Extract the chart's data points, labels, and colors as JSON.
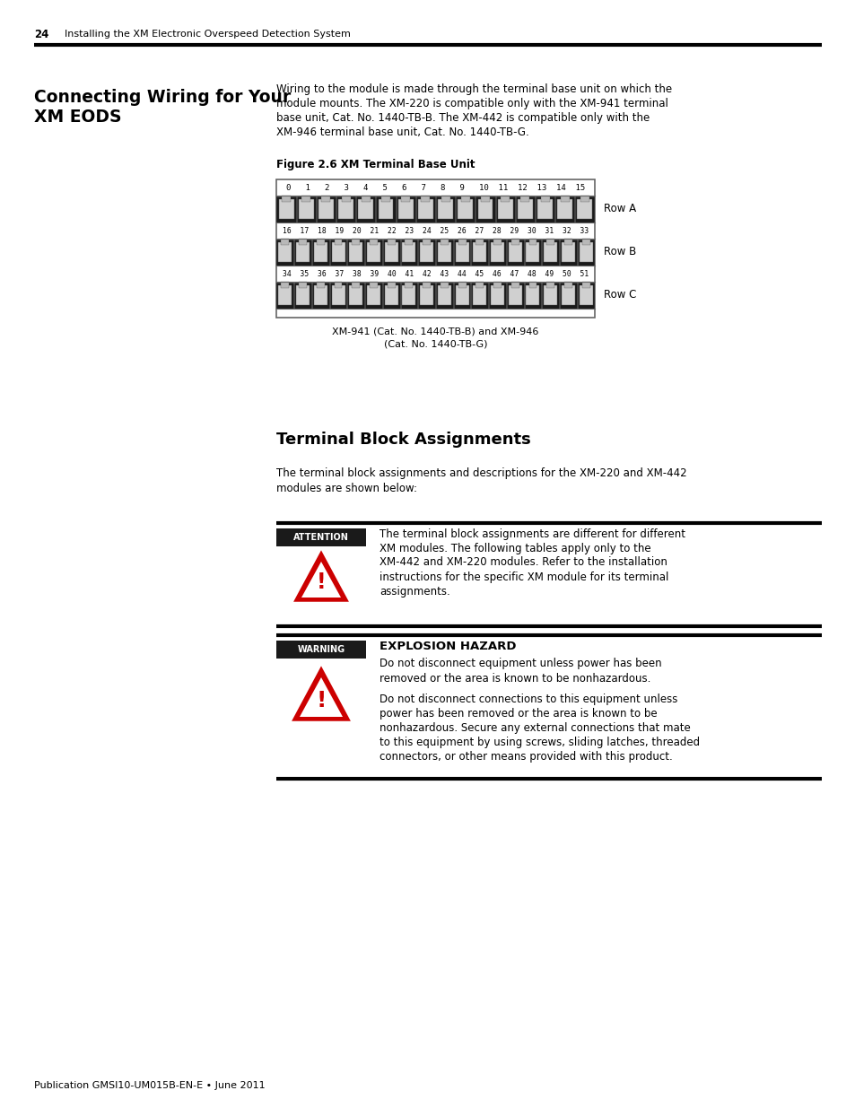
{
  "page_number": "24",
  "header_text": "Installing the XM Electronic Overspeed Detection System",
  "section_title_line1": "Connecting Wiring for Your",
  "section_title_line2": "XM EODS",
  "section_body_lines": [
    "Wiring to the module is made through the terminal base unit on which the",
    "module mounts. The XM-220 is compatible only with the XM-941 terminal",
    "base unit, Cat. No. 1440-TB-B. The XM-442 is compatible only with the",
    "XM-946 terminal base unit, Cat. No. 1440-TB-G."
  ],
  "figure_label": "Figure 2.6 XM Terminal Base Unit",
  "row_a_numbers": "0   1   2   3   4   5   6   7   8   9   10  11  12  13  14  15",
  "row_b_numbers": "16  17  18  19  20  21  22  23  24  25  26  27  28  29  30  31  32  33",
  "row_c_numbers": "34  35  36  37  38  39  40  41  42  43  44  45  46  47  48  49  50  51",
  "row_a_label": "Row A",
  "row_b_label": "Row B",
  "row_c_label": "Row C",
  "figure_caption_line1": "XM-941 (Cat. No. 1440-TB-B) and XM-946",
  "figure_caption_line2": "(Cat. No. 1440-TB-G)",
  "section2_title": "Terminal Block Assignments",
  "section2_body_lines": [
    "The terminal block assignments and descriptions for the XM-220 and XM-442",
    "modules are shown below:"
  ],
  "attention_label": "ATTENTION",
  "attention_text_lines": [
    "The terminal block assignments are different for different",
    "XM modules. The following tables apply only to the",
    "XM-442 and XM-220 modules. Refer to the installation",
    "instructions for the specific XM module for its terminal",
    "assignments."
  ],
  "warning_label": "WARNING",
  "warning_title": "EXPLOSION HAZARD",
  "warning_text1_lines": [
    "Do not disconnect equipment unless power has been",
    "removed or the area is known to be nonhazardous."
  ],
  "warning_text2_lines": [
    "Do not disconnect connections to this equipment unless",
    "power has been removed or the area is known to be",
    "nonhazardous. Secure any external connections that mate",
    "to this equipment by using screws, sliding latches, threaded",
    "connectors, or other means provided with this product."
  ],
  "footer_text": "Publication GMSI10-UM015B-EN-E • June 2011",
  "bg_color": "#ffffff",
  "text_color": "#000000"
}
